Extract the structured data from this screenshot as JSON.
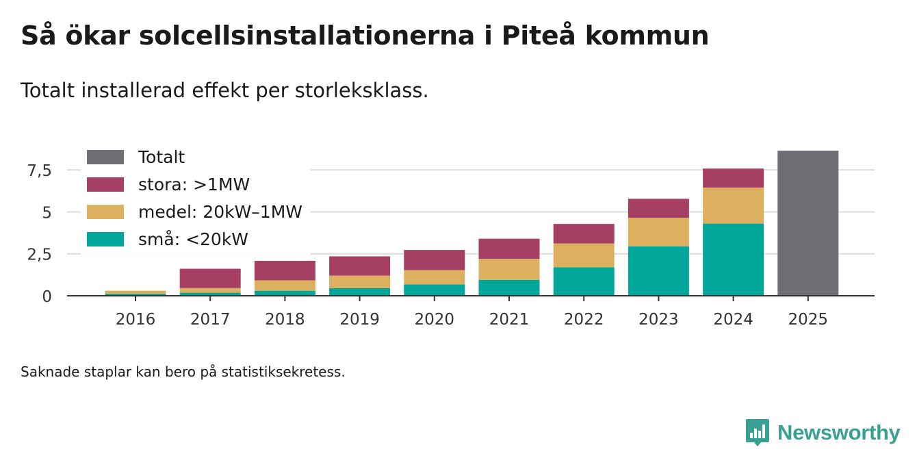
{
  "title": "Så ökar solcellsinstallationerna i Piteå kommun",
  "subtitle": "Totalt installerad effekt per storleksklass.",
  "note": "Saknade staplar kan bero på statistiksekretess.",
  "brand": {
    "name": "Newsworthy",
    "icon": "newsworthy-logo-icon",
    "color": "#3aa093"
  },
  "chart_data": {
    "type": "bar",
    "stacked": true,
    "categories": [
      "2016",
      "2017",
      "2018",
      "2019",
      "2020",
      "2021",
      "2022",
      "2023",
      "2024",
      "2025"
    ],
    "series": [
      {
        "name": "små: <20kW",
        "color": "#00a69a",
        "values": [
          0.12,
          0.18,
          0.3,
          0.45,
          0.68,
          0.95,
          1.7,
          2.95,
          4.3,
          null
        ]
      },
      {
        "name": "medel: 20kW–1MW",
        "color": "#ddb05f",
        "values": [
          0.18,
          0.28,
          0.62,
          0.75,
          0.85,
          1.25,
          1.42,
          1.7,
          2.15,
          null
        ]
      },
      {
        "name": "stora: >1MW",
        "color": "#a53f64",
        "values": [
          0.0,
          1.15,
          1.16,
          1.15,
          1.2,
          1.2,
          1.16,
          1.13,
          1.13,
          null
        ]
      },
      {
        "name": "Totalt",
        "color": "#6f6e74",
        "values": [
          null,
          null,
          null,
          null,
          null,
          null,
          null,
          null,
          null,
          8.65
        ]
      }
    ],
    "legend": {
      "position": "top-left",
      "order": [
        "Totalt",
        "stora: >1MW",
        "medel: 20kW–1MW",
        "små: <20kW"
      ]
    },
    "yticks": [
      {
        "value": 0,
        "label": "0"
      },
      {
        "value": 2.5,
        "label": "2,5"
      },
      {
        "value": 5,
        "label": "5"
      },
      {
        "value": 7.5,
        "label": "7,5"
      }
    ],
    "ylim": [
      0,
      8.65
    ],
    "xlabel": "",
    "ylabel": "",
    "grid": true
  }
}
